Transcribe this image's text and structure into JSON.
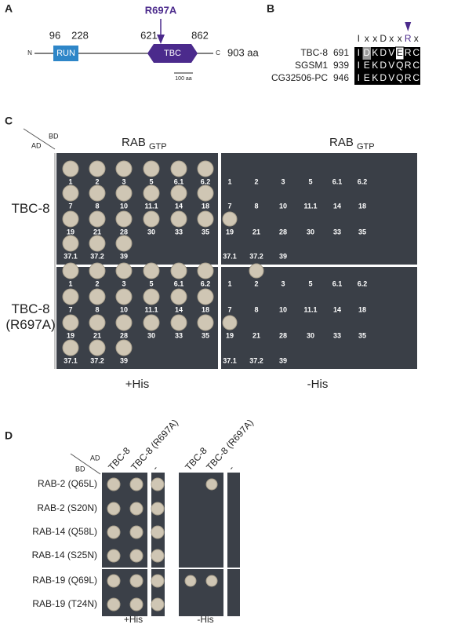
{
  "panel_a": {
    "label": "A",
    "mutation": "R697A",
    "positions": [
      "96",
      "228",
      "621",
      "862"
    ],
    "n_term": "N",
    "c_term": "C",
    "domains": [
      "RUN",
      "TBC"
    ],
    "length": "903 aa",
    "scale": "100 aa"
  },
  "panel_b": {
    "label": "B",
    "motif": [
      "I",
      "x",
      "x",
      "D",
      "x",
      "x",
      "R",
      "x"
    ],
    "rows": [
      {
        "name": "TBC-8",
        "start": "691",
        "seq": [
          "I",
          "D",
          "K",
          "D",
          "V",
          "E",
          "R",
          "C"
        ]
      },
      {
        "name": "SGSM1",
        "start": "939",
        "seq": [
          "I",
          "E",
          "K",
          "D",
          "V",
          "Q",
          "R",
          "C"
        ]
      },
      {
        "name": "CG32506-PC",
        "start": "946",
        "seq": [
          "I",
          "E",
          "K",
          "D",
          "V",
          "Q",
          "R",
          "C"
        ]
      }
    ]
  },
  "panel_c": {
    "label": "C",
    "bd": "BD",
    "ad": "AD",
    "column_title": "RAB",
    "column_subscript": "GTP",
    "rows": [
      "TBC-8",
      "TBC-8 (R697A)"
    ],
    "spots": [
      "1",
      "2",
      "3",
      "5",
      "6.1",
      "6.2",
      "7",
      "8",
      "10",
      "11.1",
      "14",
      "18",
      "19",
      "21",
      "28",
      "30",
      "33",
      "35",
      "37.1",
      "37.2",
      "39"
    ],
    "conditions": [
      "+His",
      "-His"
    ]
  },
  "panel_d": {
    "label": "D",
    "ad": "AD",
    "bd": "BD",
    "columns": [
      "TBC-8",
      "TBC-8 (R697A)",
      "-"
    ],
    "rows": [
      "RAB-2 (Q65L)",
      "RAB-2 (S20N)",
      "RAB-14 (Q58L)",
      "RAB-14 (S25N)",
      "RAB-19 (Q69L)",
      "RAB-19 (T24N)"
    ],
    "conditions": [
      "+His",
      "-His"
    ]
  }
}
